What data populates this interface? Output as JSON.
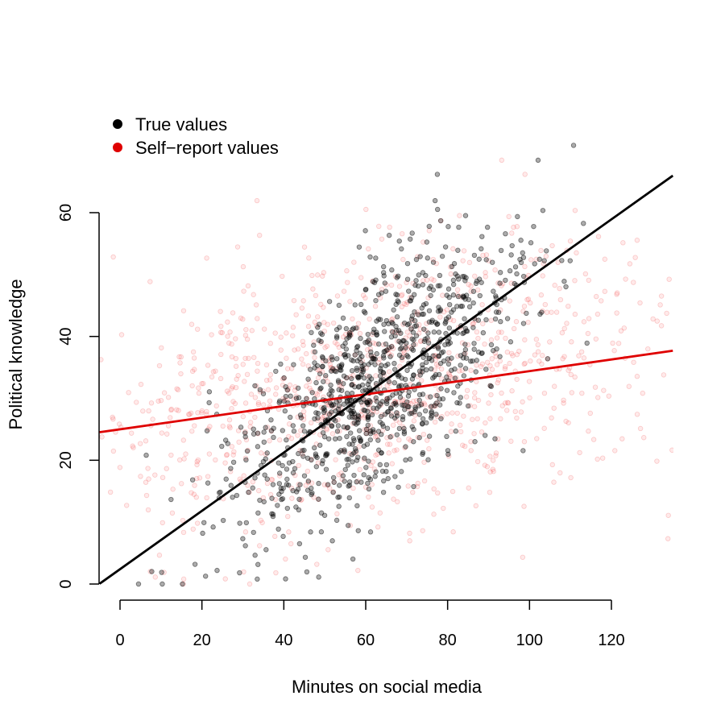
{
  "chart_data": {
    "type": "scatter",
    "title": "",
    "xlabel": "Minutes on social media",
    "ylabel": "Political knowledge",
    "xlim": [
      -5,
      135
    ],
    "ylim": [
      0,
      66
    ],
    "x_ticks": [
      0,
      20,
      40,
      60,
      80,
      100,
      120
    ],
    "y_ticks": [
      0,
      20,
      40,
      60
    ],
    "grid": false,
    "legend": {
      "position": "top-left",
      "entries": [
        {
          "label": "True values",
          "color": "#000000"
        },
        {
          "label": "Self−report values",
          "color": "#DF0000"
        }
      ]
    },
    "series": [
      {
        "name": "True values",
        "color": "#000000",
        "n_points": 1000,
        "x_mean": 62,
        "x_sd": 18,
        "fit_line": {
          "intercept": 2.4,
          "slope": 0.471
        },
        "residual_sd": 9
      },
      {
        "name": "Self−report values",
        "color": "#DF0000",
        "n_points": 1000,
        "x_report_noise_sd": 30,
        "fit_line": {
          "intercept": 25.0,
          "slope": 0.094
        }
      }
    ]
  }
}
